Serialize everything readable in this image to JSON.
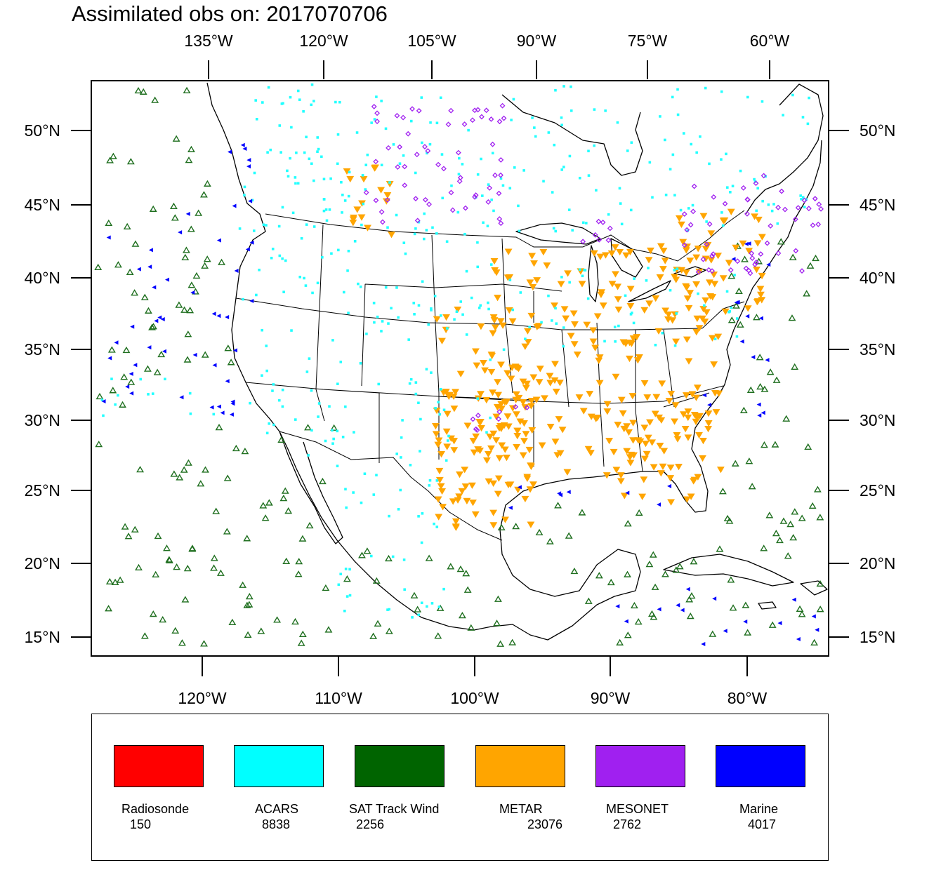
{
  "title": "Assimilated obs on: 2017070706",
  "top_lon_labels": [
    "135°W",
    "120°W",
    "105°W",
    "90°W",
    "75°W",
    "60°W"
  ],
  "bottom_lon_labels": [
    "120°W",
    "110°W",
    "100°W",
    "90°W",
    "80°W"
  ],
  "lat_labels": [
    "50°N",
    "45°N",
    "40°N",
    "35°N",
    "30°N",
    "25°N",
    "20°N",
    "15°N"
  ],
  "legend": [
    {
      "name": "Radiosonde",
      "count": "150",
      "color": "#ff0000"
    },
    {
      "name": "ACARS",
      "count": "8838",
      "color": "#00ffff"
    },
    {
      "name": "SAT Track Wind",
      "count": "2256",
      "color": "#006400"
    },
    {
      "name": "METAR",
      "count": "23076",
      "color": "#ffa500"
    },
    {
      "name": "MESONET",
      "count": "2762",
      "color": "#a020f0"
    },
    {
      "name": "Marine",
      "count": "4017",
      "color": "#0000ff"
    }
  ],
  "colors": {
    "sat_marker": "#1f6f1f",
    "acars_marker": "#22ffff",
    "metar_marker": "#ffa500",
    "mesonet_marker": "#a020f0",
    "marine_marker": "#0000ff",
    "coastline": "#000000"
  }
}
